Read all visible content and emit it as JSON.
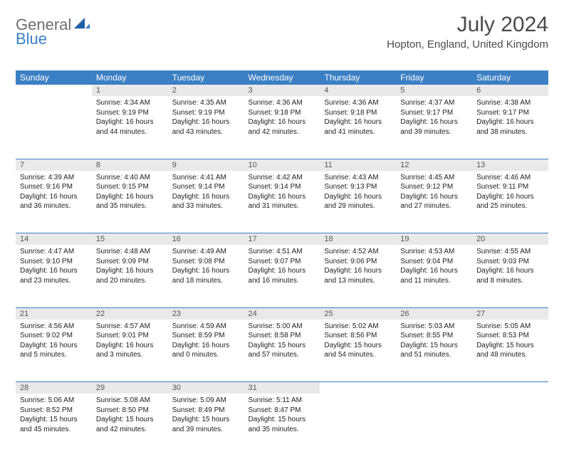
{
  "logo": {
    "text1": "General",
    "text2": "Blue"
  },
  "title": "July 2024",
  "location": "Hopton, England, United Kingdom",
  "colors": {
    "header_bg": "#3b7fc4",
    "header_text": "#ffffff",
    "daynum_bg": "#e9e9e9",
    "daynum_text": "#555555",
    "divider": "#3b7fc4",
    "page_bg": "#ffffff",
    "body_text": "#222222",
    "title_text": "#4a4a4a",
    "logo_gray": "#6e6e6e",
    "logo_blue": "#3b7fc4"
  },
  "weekdays": [
    "Sunday",
    "Monday",
    "Tuesday",
    "Wednesday",
    "Thursday",
    "Friday",
    "Saturday"
  ],
  "weeks": [
    [
      null,
      {
        "n": "1",
        "sunrise": "Sunrise: 4:34 AM",
        "sunset": "Sunset: 9:19 PM",
        "day1": "Daylight: 16 hours",
        "day2": "and 44 minutes."
      },
      {
        "n": "2",
        "sunrise": "Sunrise: 4:35 AM",
        "sunset": "Sunset: 9:19 PM",
        "day1": "Daylight: 16 hours",
        "day2": "and 43 minutes."
      },
      {
        "n": "3",
        "sunrise": "Sunrise: 4:36 AM",
        "sunset": "Sunset: 9:18 PM",
        "day1": "Daylight: 16 hours",
        "day2": "and 42 minutes."
      },
      {
        "n": "4",
        "sunrise": "Sunrise: 4:36 AM",
        "sunset": "Sunset: 9:18 PM",
        "day1": "Daylight: 16 hours",
        "day2": "and 41 minutes."
      },
      {
        "n": "5",
        "sunrise": "Sunrise: 4:37 AM",
        "sunset": "Sunset: 9:17 PM",
        "day1": "Daylight: 16 hours",
        "day2": "and 39 minutes."
      },
      {
        "n": "6",
        "sunrise": "Sunrise: 4:38 AM",
        "sunset": "Sunset: 9:17 PM",
        "day1": "Daylight: 16 hours",
        "day2": "and 38 minutes."
      }
    ],
    [
      {
        "n": "7",
        "sunrise": "Sunrise: 4:39 AM",
        "sunset": "Sunset: 9:16 PM",
        "day1": "Daylight: 16 hours",
        "day2": "and 36 minutes."
      },
      {
        "n": "8",
        "sunrise": "Sunrise: 4:40 AM",
        "sunset": "Sunset: 9:15 PM",
        "day1": "Daylight: 16 hours",
        "day2": "and 35 minutes."
      },
      {
        "n": "9",
        "sunrise": "Sunrise: 4:41 AM",
        "sunset": "Sunset: 9:14 PM",
        "day1": "Daylight: 16 hours",
        "day2": "and 33 minutes."
      },
      {
        "n": "10",
        "sunrise": "Sunrise: 4:42 AM",
        "sunset": "Sunset: 9:14 PM",
        "day1": "Daylight: 16 hours",
        "day2": "and 31 minutes."
      },
      {
        "n": "11",
        "sunrise": "Sunrise: 4:43 AM",
        "sunset": "Sunset: 9:13 PM",
        "day1": "Daylight: 16 hours",
        "day2": "and 29 minutes."
      },
      {
        "n": "12",
        "sunrise": "Sunrise: 4:45 AM",
        "sunset": "Sunset: 9:12 PM",
        "day1": "Daylight: 16 hours",
        "day2": "and 27 minutes."
      },
      {
        "n": "13",
        "sunrise": "Sunrise: 4:46 AM",
        "sunset": "Sunset: 9:11 PM",
        "day1": "Daylight: 16 hours",
        "day2": "and 25 minutes."
      }
    ],
    [
      {
        "n": "14",
        "sunrise": "Sunrise: 4:47 AM",
        "sunset": "Sunset: 9:10 PM",
        "day1": "Daylight: 16 hours",
        "day2": "and 23 minutes."
      },
      {
        "n": "15",
        "sunrise": "Sunrise: 4:48 AM",
        "sunset": "Sunset: 9:09 PM",
        "day1": "Daylight: 16 hours",
        "day2": "and 20 minutes."
      },
      {
        "n": "16",
        "sunrise": "Sunrise: 4:49 AM",
        "sunset": "Sunset: 9:08 PM",
        "day1": "Daylight: 16 hours",
        "day2": "and 18 minutes."
      },
      {
        "n": "17",
        "sunrise": "Sunrise: 4:51 AM",
        "sunset": "Sunset: 9:07 PM",
        "day1": "Daylight: 16 hours",
        "day2": "and 16 minutes."
      },
      {
        "n": "18",
        "sunrise": "Sunrise: 4:52 AM",
        "sunset": "Sunset: 9:06 PM",
        "day1": "Daylight: 16 hours",
        "day2": "and 13 minutes."
      },
      {
        "n": "19",
        "sunrise": "Sunrise: 4:53 AM",
        "sunset": "Sunset: 9:04 PM",
        "day1": "Daylight: 16 hours",
        "day2": "and 11 minutes."
      },
      {
        "n": "20",
        "sunrise": "Sunrise: 4:55 AM",
        "sunset": "Sunset: 9:03 PM",
        "day1": "Daylight: 16 hours",
        "day2": "and 8 minutes."
      }
    ],
    [
      {
        "n": "21",
        "sunrise": "Sunrise: 4:56 AM",
        "sunset": "Sunset: 9:02 PM",
        "day1": "Daylight: 16 hours",
        "day2": "and 5 minutes."
      },
      {
        "n": "22",
        "sunrise": "Sunrise: 4:57 AM",
        "sunset": "Sunset: 9:01 PM",
        "day1": "Daylight: 16 hours",
        "day2": "and 3 minutes."
      },
      {
        "n": "23",
        "sunrise": "Sunrise: 4:59 AM",
        "sunset": "Sunset: 8:59 PM",
        "day1": "Daylight: 16 hours",
        "day2": "and 0 minutes."
      },
      {
        "n": "24",
        "sunrise": "Sunrise: 5:00 AM",
        "sunset": "Sunset: 8:58 PM",
        "day1": "Daylight: 15 hours",
        "day2": "and 57 minutes."
      },
      {
        "n": "25",
        "sunrise": "Sunrise: 5:02 AM",
        "sunset": "Sunset: 8:56 PM",
        "day1": "Daylight: 15 hours",
        "day2": "and 54 minutes."
      },
      {
        "n": "26",
        "sunrise": "Sunrise: 5:03 AM",
        "sunset": "Sunset: 8:55 PM",
        "day1": "Daylight: 15 hours",
        "day2": "and 51 minutes."
      },
      {
        "n": "27",
        "sunrise": "Sunrise: 5:05 AM",
        "sunset": "Sunset: 8:53 PM",
        "day1": "Daylight: 15 hours",
        "day2": "and 48 minutes."
      }
    ],
    [
      {
        "n": "28",
        "sunrise": "Sunrise: 5:06 AM",
        "sunset": "Sunset: 8:52 PM",
        "day1": "Daylight: 15 hours",
        "day2": "and 45 minutes."
      },
      {
        "n": "29",
        "sunrise": "Sunrise: 5:08 AM",
        "sunset": "Sunset: 8:50 PM",
        "day1": "Daylight: 15 hours",
        "day2": "and 42 minutes."
      },
      {
        "n": "30",
        "sunrise": "Sunrise: 5:09 AM",
        "sunset": "Sunset: 8:49 PM",
        "day1": "Daylight: 15 hours",
        "day2": "and 39 minutes."
      },
      {
        "n": "31",
        "sunrise": "Sunrise: 5:11 AM",
        "sunset": "Sunset: 8:47 PM",
        "day1": "Daylight: 15 hours",
        "day2": "and 35 minutes."
      },
      null,
      null,
      null
    ]
  ]
}
